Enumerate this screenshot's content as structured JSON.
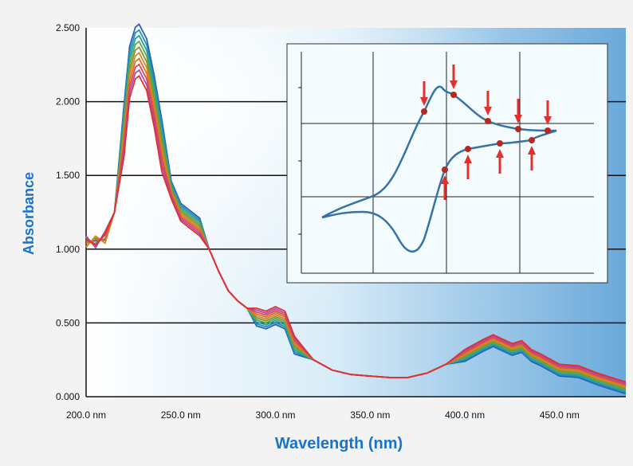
{
  "chart_data": {
    "type": "line",
    "xlabel": "Wavelength (nm)",
    "ylabel": "Absorbance",
    "xlim": [
      200,
      485
    ],
    "ylim": [
      0,
      2.5
    ],
    "x_ticks": [
      "200.0 nm",
      "250.0 nm",
      "300.0 nm",
      "350.0 nm",
      "400.0 nm",
      "450.0 nm"
    ],
    "y_ticks": [
      "0.000",
      "0.500",
      "1.000",
      "1.500",
      "2.000",
      "2.500"
    ],
    "grid": "horizontal",
    "series_colors": [
      "#2a60b4",
      "#1f8fbf",
      "#23a39a",
      "#5aa84b",
      "#8c8e2f",
      "#c98f24",
      "#e66a2c",
      "#d94b4b",
      "#a84bb4",
      "#e3302b"
    ],
    "base_series": {
      "x": [
        200,
        205,
        210,
        215,
        220,
        223,
        226,
        228,
        232,
        236,
        240,
        245,
        250,
        255,
        260,
        265,
        270,
        275,
        280,
        285,
        290,
        295,
        300,
        305,
        310,
        320,
        330,
        340,
        350,
        360,
        370,
        380,
        390,
        400,
        410,
        415,
        420,
        425,
        430,
        435,
        440,
        450,
        460,
        470,
        480,
        485
      ],
      "y": [
        1.05,
        1.05,
        1.08,
        1.25,
        1.8,
        2.2,
        2.33,
        2.35,
        2.25,
        2.0,
        1.7,
        1.4,
        1.25,
        1.2,
        1.15,
        1.0,
        0.85,
        0.72,
        0.65,
        0.6,
        0.54,
        0.52,
        0.55,
        0.52,
        0.35,
        0.25,
        0.18,
        0.15,
        0.14,
        0.13,
        0.13,
        0.16,
        0.22,
        0.28,
        0.35,
        0.38,
        0.35,
        0.32,
        0.34,
        0.28,
        0.25,
        0.18,
        0.17,
        0.12,
        0.08,
        0.06
      ]
    },
    "inset": {
      "type": "cyclic-voltammogram",
      "marker_color": "#b42a22",
      "arrow_color": "#e3302b"
    }
  }
}
